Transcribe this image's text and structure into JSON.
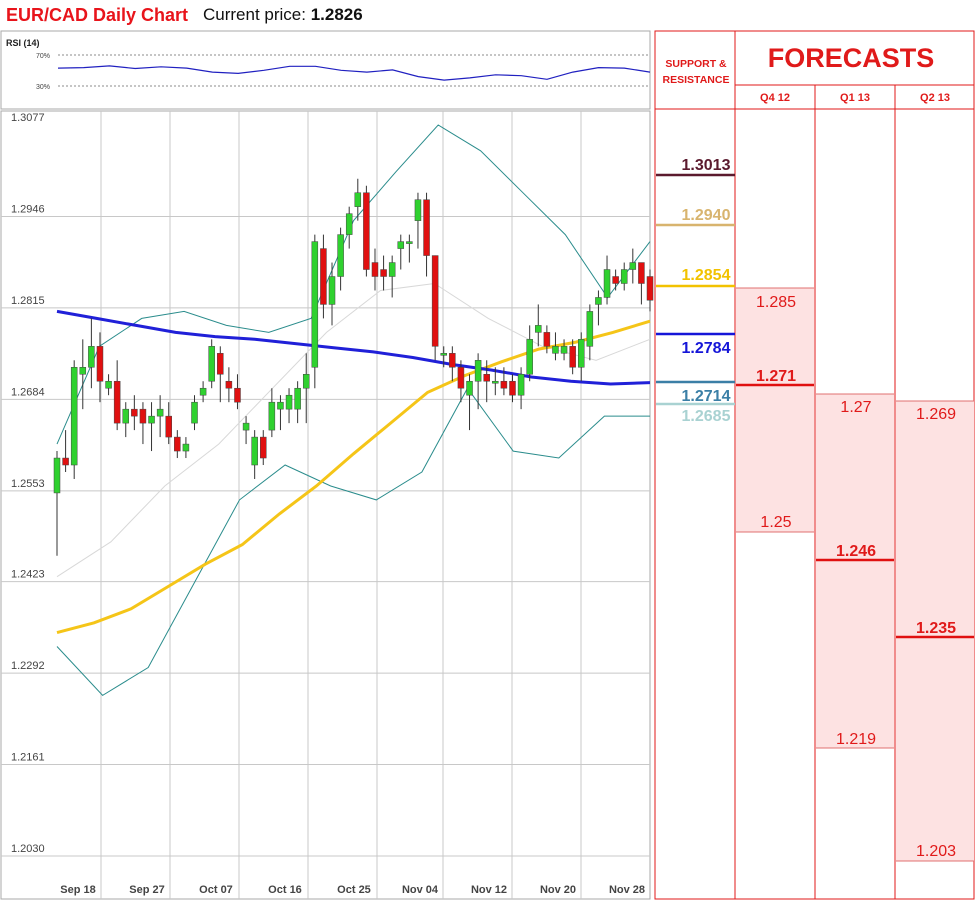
{
  "header": {
    "title": "EUR/CAD Daily Chart",
    "price_label": "Current price:",
    "price_value": "1.2826"
  },
  "rsi_panel": {
    "title": "RSI (14)",
    "levels": [
      "70%",
      "30%"
    ]
  },
  "forecast_panel": {
    "sr_title_line1": "SUPPORT &",
    "sr_title_line2": "RESISTANCE",
    "forecasts_title": "FORECASTS",
    "columns": [
      "Q4 12",
      "Q1 13",
      "Q2 13"
    ],
    "levels": [
      {
        "value": "1.3013",
        "color": "#5b1a2e"
      },
      {
        "value": "1.2940",
        "color": "#d8b46e"
      },
      {
        "value": "1.2854",
        "color": "#f2c200"
      },
      {
        "value": "1.2784",
        "color": "#1515d8"
      },
      {
        "value": "1.2714",
        "color": "#3b7fa6"
      },
      {
        "value": "1.2685",
        "color": "#a9d2d2"
      }
    ],
    "quarters": [
      {
        "high": "1.285",
        "mid": "1.271",
        "low": "1.25"
      },
      {
        "high": "1.27",
        "mid": "1.246",
        "low": "1.219"
      },
      {
        "high": "1.269",
        "mid": "1.235",
        "low": "1.203"
      }
    ]
  },
  "chart_data": {
    "type": "candlestick",
    "title": "EUR/CAD Daily Chart",
    "ylim": [
      1.203,
      1.3077
    ],
    "y_ticks": [
      "1.3077",
      "1.2946",
      "1.2815",
      "1.2684",
      "1.2553",
      "1.2423",
      "1.2292",
      "1.2161",
      "1.2030"
    ],
    "x_ticks": [
      "Sep 18",
      "Sep 27",
      "Oct 07",
      "Oct 16",
      "Oct 25",
      "Nov 04",
      "Nov 12",
      "Nov 20",
      "Nov 28"
    ],
    "colors": {
      "up": "#2fd12f",
      "down": "#e01010",
      "ma_blue": "#2020d8",
      "ma_yellow": "#f5c518",
      "bollinger": "#2a8c8c",
      "bollinger_mid": "#cfcfcf"
    },
    "candles": [
      {
        "o": 1.255,
        "h": 1.261,
        "l": 1.246,
        "c": 1.26
      },
      {
        "o": 1.26,
        "h": 1.264,
        "l": 1.258,
        "c": 1.259
      },
      {
        "o": 1.259,
        "h": 1.274,
        "l": 1.257,
        "c": 1.273
      },
      {
        "o": 1.272,
        "h": 1.277,
        "l": 1.267,
        "c": 1.273
      },
      {
        "o": 1.273,
        "h": 1.28,
        "l": 1.27,
        "c": 1.276
      },
      {
        "o": 1.276,
        "h": 1.278,
        "l": 1.268,
        "c": 1.271
      },
      {
        "o": 1.27,
        "h": 1.272,
        "l": 1.269,
        "c": 1.271
      },
      {
        "o": 1.271,
        "h": 1.274,
        "l": 1.264,
        "c": 1.265
      },
      {
        "o": 1.265,
        "h": 1.268,
        "l": 1.263,
        "c": 1.267
      },
      {
        "o": 1.267,
        "h": 1.269,
        "l": 1.264,
        "c": 1.266
      },
      {
        "o": 1.267,
        "h": 1.268,
        "l": 1.262,
        "c": 1.265
      },
      {
        "o": 1.265,
        "h": 1.268,
        "l": 1.261,
        "c": 1.266
      },
      {
        "o": 1.266,
        "h": 1.269,
        "l": 1.263,
        "c": 1.267
      },
      {
        "o": 1.266,
        "h": 1.268,
        "l": 1.262,
        "c": 1.263
      },
      {
        "o": 1.263,
        "h": 1.264,
        "l": 1.26,
        "c": 1.261
      },
      {
        "o": 1.261,
        "h": 1.263,
        "l": 1.26,
        "c": 1.262
      },
      {
        "o": 1.265,
        "h": 1.269,
        "l": 1.264,
        "c": 1.268
      },
      {
        "o": 1.269,
        "h": 1.271,
        "l": 1.268,
        "c": 1.27
      },
      {
        "o": 1.271,
        "h": 1.277,
        "l": 1.27,
        "c": 1.276
      },
      {
        "o": 1.275,
        "h": 1.276,
        "l": 1.268,
        "c": 1.272
      },
      {
        "o": 1.271,
        "h": 1.273,
        "l": 1.268,
        "c": 1.27
      },
      {
        "o": 1.27,
        "h": 1.272,
        "l": 1.267,
        "c": 1.268
      },
      {
        "o": 1.264,
        "h": 1.266,
        "l": 1.262,
        "c": 1.265
      },
      {
        "o": 1.259,
        "h": 1.264,
        "l": 1.257,
        "c": 1.263
      },
      {
        "o": 1.263,
        "h": 1.264,
        "l": 1.259,
        "c": 1.26
      },
      {
        "o": 1.264,
        "h": 1.27,
        "l": 1.263,
        "c": 1.268
      },
      {
        "o": 1.267,
        "h": 1.269,
        "l": 1.264,
        "c": 1.268
      },
      {
        "o": 1.267,
        "h": 1.27,
        "l": 1.265,
        "c": 1.269
      },
      {
        "o": 1.267,
        "h": 1.271,
        "l": 1.265,
        "c": 1.27
      },
      {
        "o": 1.27,
        "h": 1.275,
        "l": 1.265,
        "c": 1.272
      },
      {
        "o": 1.273,
        "h": 1.292,
        "l": 1.27,
        "c": 1.291
      },
      {
        "o": 1.29,
        "h": 1.292,
        "l": 1.28,
        "c": 1.282
      },
      {
        "o": 1.282,
        "h": 1.288,
        "l": 1.279,
        "c": 1.286
      },
      {
        "o": 1.286,
        "h": 1.293,
        "l": 1.284,
        "c": 1.292
      },
      {
        "o": 1.292,
        "h": 1.296,
        "l": 1.29,
        "c": 1.295
      },
      {
        "o": 1.296,
        "h": 1.3,
        "l": 1.294,
        "c": 1.298
      },
      {
        "o": 1.298,
        "h": 1.299,
        "l": 1.286,
        "c": 1.287
      },
      {
        "o": 1.288,
        "h": 1.29,
        "l": 1.284,
        "c": 1.286
      },
      {
        "o": 1.287,
        "h": 1.289,
        "l": 1.284,
        "c": 1.286
      },
      {
        "o": 1.286,
        "h": 1.289,
        "l": 1.283,
        "c": 1.288
      },
      {
        "o": 1.29,
        "h": 1.292,
        "l": 1.287,
        "c": 1.291
      },
      {
        "o": 1.291,
        "h": 1.292,
        "l": 1.288,
        "c": 1.291
      },
      {
        "o": 1.294,
        "h": 1.298,
        "l": 1.29,
        "c": 1.297
      },
      {
        "o": 1.297,
        "h": 1.298,
        "l": 1.286,
        "c": 1.289
      },
      {
        "o": 1.289,
        "h": 1.289,
        "l": 1.274,
        "c": 1.276
      },
      {
        "o": 1.275,
        "h": 1.276,
        "l": 1.273,
        "c": 1.275
      },
      {
        "o": 1.275,
        "h": 1.276,
        "l": 1.271,
        "c": 1.273
      },
      {
        "o": 1.273,
        "h": 1.274,
        "l": 1.268,
        "c": 1.27
      },
      {
        "o": 1.269,
        "h": 1.272,
        "l": 1.264,
        "c": 1.271
      },
      {
        "o": 1.271,
        "h": 1.275,
        "l": 1.267,
        "c": 1.274
      },
      {
        "o": 1.272,
        "h": 1.274,
        "l": 1.268,
        "c": 1.271
      },
      {
        "o": 1.271,
        "h": 1.273,
        "l": 1.269,
        "c": 1.271
      },
      {
        "o": 1.271,
        "h": 1.273,
        "l": 1.269,
        "c": 1.27
      },
      {
        "o": 1.271,
        "h": 1.272,
        "l": 1.268,
        "c": 1.269
      },
      {
        "o": 1.269,
        "h": 1.273,
        "l": 1.267,
        "c": 1.272
      },
      {
        "o": 1.272,
        "h": 1.279,
        "l": 1.271,
        "c": 1.277
      },
      {
        "o": 1.278,
        "h": 1.282,
        "l": 1.276,
        "c": 1.279
      },
      {
        "o": 1.278,
        "h": 1.279,
        "l": 1.275,
        "c": 1.276
      },
      {
        "o": 1.275,
        "h": 1.278,
        "l": 1.274,
        "c": 1.276
      },
      {
        "o": 1.275,
        "h": 1.277,
        "l": 1.274,
        "c": 1.276
      },
      {
        "o": 1.276,
        "h": 1.277,
        "l": 1.272,
        "c": 1.273
      },
      {
        "o": 1.273,
        "h": 1.278,
        "l": 1.271,
        "c": 1.277
      },
      {
        "o": 1.276,
        "h": 1.282,
        "l": 1.274,
        "c": 1.281
      },
      {
        "o": 1.282,
        "h": 1.284,
        "l": 1.279,
        "c": 1.283
      },
      {
        "o": 1.283,
        "h": 1.289,
        "l": 1.282,
        "c": 1.287
      },
      {
        "o": 1.286,
        "h": 1.287,
        "l": 1.284,
        "c": 1.285
      },
      {
        "o": 1.285,
        "h": 1.288,
        "l": 1.284,
        "c": 1.287
      },
      {
        "o": 1.287,
        "h": 1.29,
        "l": 1.285,
        "c": 1.288
      },
      {
        "o": 1.288,
        "h": 1.288,
        "l": 1.282,
        "c": 1.285
      },
      {
        "o": 1.286,
        "h": 1.287,
        "l": 1.281,
        "c": 1.2826
      }
    ],
    "ma_blue": [
      1.281,
      1.28,
      1.279,
      1.278,
      1.2774,
      1.277,
      1.2764,
      1.2758,
      1.2752,
      1.2744,
      1.2734,
      1.2726,
      1.2716,
      1.271,
      1.2706,
      1.2708
    ],
    "ma_yellow": [
      1.235,
      1.2364,
      1.2384,
      1.2416,
      1.2448,
      1.2476,
      1.252,
      1.256,
      1.2606,
      1.265,
      1.2694,
      1.2718,
      1.2738,
      1.2756,
      1.2766,
      1.278,
      1.2796
    ],
    "bollinger_upper": [
      1.262,
      1.276,
      1.28,
      1.281,
      1.279,
      1.278,
      1.28,
      1.294,
      1.301,
      1.3077,
      1.304,
      1.298,
      1.292,
      1.283,
      1.291
    ],
    "bollinger_lower": [
      1.233,
      1.226,
      1.23,
      1.242,
      1.254,
      1.259,
      1.256,
      1.254,
      1.258,
      1.27,
      1.261,
      1.26,
      1.266,
      1.266
    ],
    "bollinger_mid": [
      1.243,
      1.248,
      1.256,
      1.262,
      1.27,
      1.278,
      1.284,
      1.285,
      1.28,
      1.276,
      1.274,
      1.277
    ],
    "rsi": [
      0.67,
      0.68,
      0.72,
      0.66,
      0.7,
      0.67,
      0.58,
      0.55,
      0.62,
      0.71,
      0.71,
      0.62,
      0.58,
      0.63,
      0.48,
      0.4,
      0.45,
      0.52,
      0.5,
      0.42,
      0.58,
      0.68,
      0.67,
      0.58
    ]
  }
}
